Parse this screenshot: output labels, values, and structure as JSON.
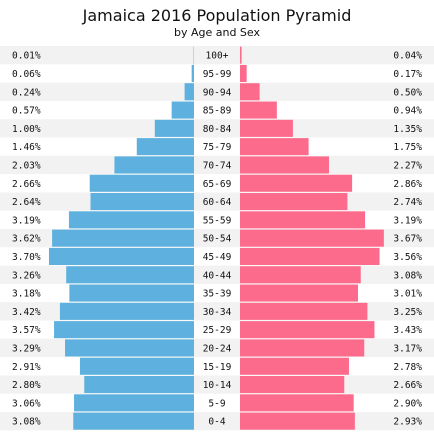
{
  "title": "Jamaica 2016 Population Pyramid",
  "subtitle": "by Age and Sex",
  "chart_data": {
    "type": "bar",
    "orientation": "horizontal-pyramid",
    "categories": [
      "100+",
      "95-99",
      "90-94",
      "85-89",
      "80-84",
      "75-79",
      "70-74",
      "65-69",
      "60-64",
      "55-59",
      "50-54",
      "45-49",
      "40-44",
      "35-39",
      "30-34",
      "25-29",
      "20-24",
      "15-19",
      "10-14",
      "5-9",
      "0-4"
    ],
    "series": [
      {
        "side": "left",
        "color": "#5eb1de",
        "values": [
          0.01,
          0.06,
          0.24,
          0.57,
          1.0,
          1.46,
          2.03,
          2.66,
          2.64,
          3.19,
          3.62,
          3.7,
          3.26,
          3.18,
          3.42,
          3.57,
          3.29,
          2.91,
          2.8,
          3.06,
          3.08
        ],
        "labels": [
          "0.01%",
          "0.06%",
          "0.24%",
          "0.57%",
          "1.00%",
          "1.46%",
          "2.03%",
          "2.66%",
          "2.64%",
          "3.19%",
          "3.62%",
          "3.70%",
          "3.26%",
          "3.18%",
          "3.42%",
          "3.57%",
          "3.29%",
          "2.91%",
          "2.80%",
          "3.06%",
          "3.08%"
        ]
      },
      {
        "side": "right",
        "color": "#fd6b8c",
        "values": [
          0.04,
          0.17,
          0.5,
          0.94,
          1.35,
          1.75,
          2.27,
          2.86,
          2.74,
          3.19,
          3.67,
          3.56,
          3.08,
          3.01,
          3.25,
          3.43,
          3.17,
          2.78,
          2.66,
          2.9,
          2.93
        ],
        "labels": [
          "0.04%",
          "0.17%",
          "0.50%",
          "0.94%",
          "1.35%",
          "1.75%",
          "2.27%",
          "2.86%",
          "2.74%",
          "3.19%",
          "3.67%",
          "3.56%",
          "3.08%",
          "3.01%",
          "3.25%",
          "3.43%",
          "3.17%",
          "2.78%",
          "2.66%",
          "2.90%",
          "2.93%"
        ]
      }
    ],
    "xlim": [
      0,
      3.75
    ],
    "background_stripes": true
  }
}
